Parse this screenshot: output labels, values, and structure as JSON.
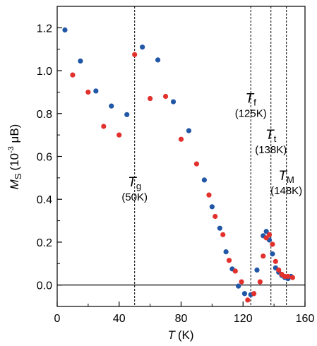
{
  "chart_data": {
    "type": "scatter",
    "xlim": [
      0,
      160
    ],
    "ylim": [
      -0.1,
      1.3
    ],
    "xticks": [
      "0",
      "40",
      "80",
      "120",
      "160"
    ],
    "xtick_values": [
      0,
      40,
      80,
      120,
      160
    ],
    "yticks": [
      "0.0",
      "0.2",
      "0.4",
      "0.6",
      "0.8",
      "1.0",
      "1.2"
    ],
    "ytick_values": [
      0.0,
      0.2,
      0.4,
      0.6,
      0.8,
      1.0,
      1.2
    ],
    "xlabel": {
      "symbol": "T",
      "unit": "(K)"
    },
    "ylabel": {
      "symbol": "M",
      "sub": "S",
      "unit_pre": "(10",
      "unit_exp": "-3",
      "unit_post": " μB)"
    },
    "zero_line": 0.0,
    "colors": {
      "blue": "#2157a6",
      "red": "#e2312d"
    },
    "series": [
      {
        "color": "#2157a6",
        "x": [
          5,
          15,
          25,
          35,
          45,
          55,
          65,
          75,
          85,
          95,
          100,
          105,
          109,
          113,
          117,
          121,
          125,
          129,
          133,
          135,
          137,
          139,
          141,
          143,
          145,
          147,
          149,
          151
        ],
        "y": [
          1.19,
          1.045,
          0.905,
          0.835,
          0.795,
          1.11,
          1.05,
          0.855,
          0.72,
          0.49,
          0.365,
          0.265,
          0.155,
          0.075,
          -0.005,
          -0.04,
          -0.045,
          0.07,
          0.23,
          0.25,
          0.21,
          0.145,
          0.08,
          0.06,
          0.045,
          0.035,
          0.03,
          0.04
        ]
      },
      {
        "color": "#e2312d",
        "x": [
          10,
          20,
          30,
          40,
          50,
          60,
          70,
          80,
          90,
          98,
          102,
          107,
          111,
          115,
          119,
          123,
          127,
          131,
          133,
          135,
          137,
          139,
          141,
          143,
          145,
          147,
          149,
          152
        ],
        "y": [
          0.98,
          0.9,
          0.74,
          0.7,
          1.075,
          0.87,
          0.88,
          0.68,
          0.565,
          0.42,
          0.32,
          0.235,
          0.115,
          0.065,
          0.015,
          -0.07,
          -0.04,
          0.015,
          0.135,
          0.22,
          0.235,
          0.19,
          0.11,
          0.07,
          0.05,
          0.04,
          0.04,
          0.035
        ]
      }
    ],
    "transitions": [
      {
        "symbol": "T",
        "sub": "g",
        "temp_label": "(50K)",
        "x": 50,
        "label_y": 0.46
      },
      {
        "symbol": "T",
        "sub": "f",
        "temp_label": "(125K)",
        "x": 125,
        "label_y": 0.85
      },
      {
        "symbol": "T",
        "sub": "t",
        "temp_label": "(138K)",
        "x": 138,
        "label_y": 0.68
      },
      {
        "symbol": "T",
        "sub": "M",
        "temp_label": "(148K)",
        "x": 148,
        "label_y": 0.49
      }
    ]
  }
}
